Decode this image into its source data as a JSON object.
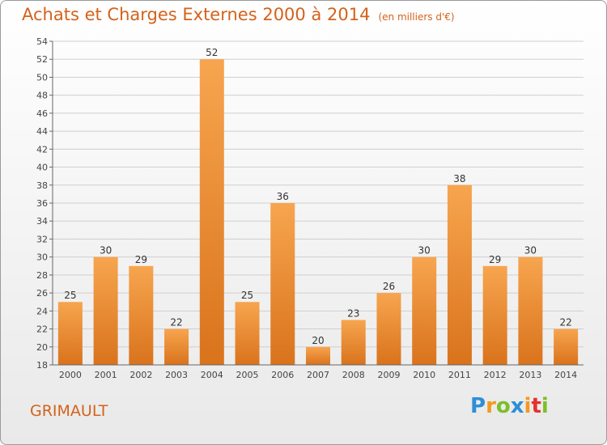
{
  "chart_data": {
    "type": "bar",
    "title": "Achats et Charges Externes 2000 à 2014",
    "subtitle": "(en milliers d'€)",
    "categories": [
      "2000",
      "2001",
      "2002",
      "2003",
      "2004",
      "2005",
      "2006",
      "2007",
      "2008",
      "2009",
      "2010",
      "2011",
      "2012",
      "2013",
      "2014"
    ],
    "values": [
      25,
      30,
      29,
      22,
      52,
      25,
      36,
      20,
      23,
      26,
      30,
      38,
      29,
      30,
      22
    ],
    "ylim": [
      18,
      54
    ],
    "ytick_step": 2,
    "grid": true,
    "bar_color_light": "#f7a54f",
    "bar_color_dark": "#d9731c"
  },
  "commune": "GRIMAULT",
  "logo": {
    "letters": [
      "P",
      "r",
      "o",
      "x",
      "i",
      "t",
      "i"
    ],
    "colors": [
      "#2e8fd6",
      "#f39a1e",
      "#7cbf2a",
      "#2e8fd6",
      "#f39a1e",
      "#e5322d",
      "#7cbf2a"
    ]
  }
}
